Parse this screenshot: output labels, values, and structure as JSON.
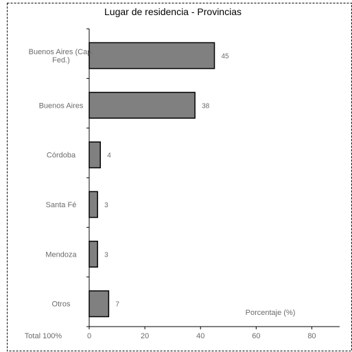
{
  "chart_data": {
    "type": "bar",
    "orientation": "horizontal",
    "title": "Lugar de residencia - Provincias",
    "xlabel": "Porcentaje (%)",
    "ylabel": "",
    "total_label": "Total 100%",
    "categories": [
      [
        "Buenos Aires (Cap.",
        "Fed.)"
      ],
      [
        "Buenos Aires"
      ],
      [
        "Córdoba"
      ],
      [
        "Santa Fé"
      ],
      [
        "Mendoza"
      ],
      [
        "Otros"
      ]
    ],
    "values": [
      45,
      38,
      4,
      3,
      3,
      7
    ],
    "xlim": [
      0,
      90
    ],
    "xticks": [
      0,
      20,
      40,
      60,
      80
    ],
    "grid": false,
    "bar_color": "#808080",
    "bar_stroke": "#000000",
    "border_style": "dashed"
  }
}
